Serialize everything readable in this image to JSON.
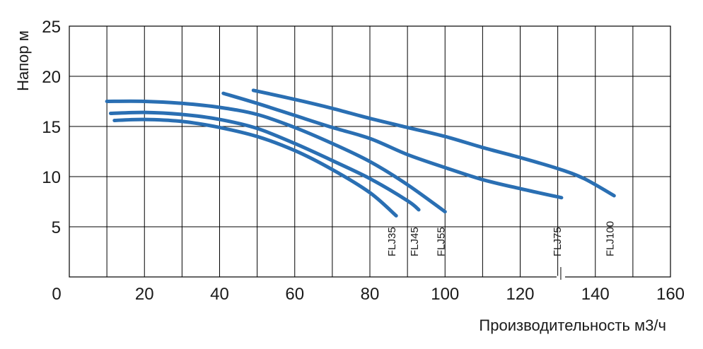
{
  "chart_data": {
    "type": "line",
    "xlabel": "Производительность м3/ч",
    "ylabel": "Напор м",
    "xlim": [
      0,
      160
    ],
    "ylim": [
      0,
      25
    ],
    "x_ticks": [
      0,
      20,
      40,
      60,
      80,
      100,
      120,
      140,
      160
    ],
    "y_ticks": [
      5,
      10,
      15,
      20,
      25
    ],
    "grid": true,
    "colors": {
      "line": "#2a6fb3",
      "grid": "#000000"
    },
    "series": [
      {
        "name": "FLJ35",
        "x": [
          12,
          20,
          30,
          40,
          50,
          60,
          70,
          80,
          87
        ],
        "y": [
          15.6,
          15.7,
          15.5,
          14.9,
          14.0,
          12.6,
          10.7,
          8.4,
          6.1
        ]
      },
      {
        "name": "FLJ45",
        "x": [
          11,
          20,
          30,
          40,
          50,
          60,
          70,
          80,
          90,
          93
        ],
        "y": [
          16.3,
          16.4,
          16.2,
          15.7,
          14.8,
          13.3,
          11.6,
          9.8,
          7.6,
          6.7
        ]
      },
      {
        "name": "FLJ55",
        "x": [
          10,
          20,
          30,
          40,
          50,
          60,
          70,
          80,
          90,
          100
        ],
        "y": [
          17.5,
          17.5,
          17.3,
          16.9,
          16.2,
          14.9,
          13.3,
          11.5,
          9.2,
          6.5
        ]
      },
      {
        "name": "FLJ75",
        "x": [
          41,
          50,
          60,
          70,
          80,
          90,
          100,
          110,
          120,
          131
        ],
        "y": [
          18.3,
          17.3,
          16.1,
          14.9,
          13.8,
          12.2,
          10.9,
          9.7,
          8.8,
          7.9
        ]
      },
      {
        "name": "FLJ100",
        "x": [
          49,
          60,
          70,
          80,
          90,
          100,
          110,
          120,
          130,
          137,
          145
        ],
        "y": [
          18.6,
          17.7,
          16.8,
          15.8,
          14.9,
          14.0,
          12.9,
          11.9,
          10.8,
          9.8,
          8.1
        ]
      }
    ]
  }
}
